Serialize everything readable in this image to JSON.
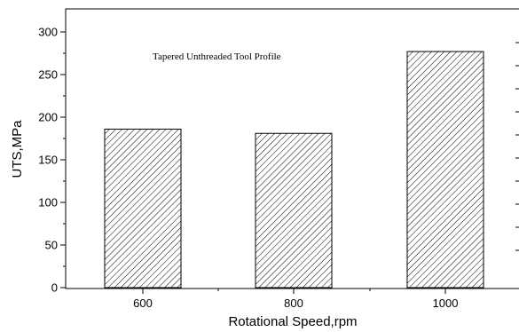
{
  "chart_data": {
    "type": "bar",
    "title": "",
    "annotation": "Tapered Unthreaded Tool Profile",
    "xlabel": "Rotational Speed,rpm",
    "ylabel": "UTS,MPa",
    "categories": [
      "600",
      "800",
      "1000"
    ],
    "values": [
      186,
      181,
      277
    ],
    "ylim": [
      0,
      310
    ],
    "yticks": [
      0,
      50,
      100,
      150,
      200,
      250,
      300
    ],
    "y_tick_labels": [
      "0",
      "50",
      "100",
      "150",
      "200",
      "250",
      "300"
    ],
    "bar_fill": "diagonal-hatch",
    "bar_color": "#000000",
    "grid": false,
    "legend": "none"
  }
}
